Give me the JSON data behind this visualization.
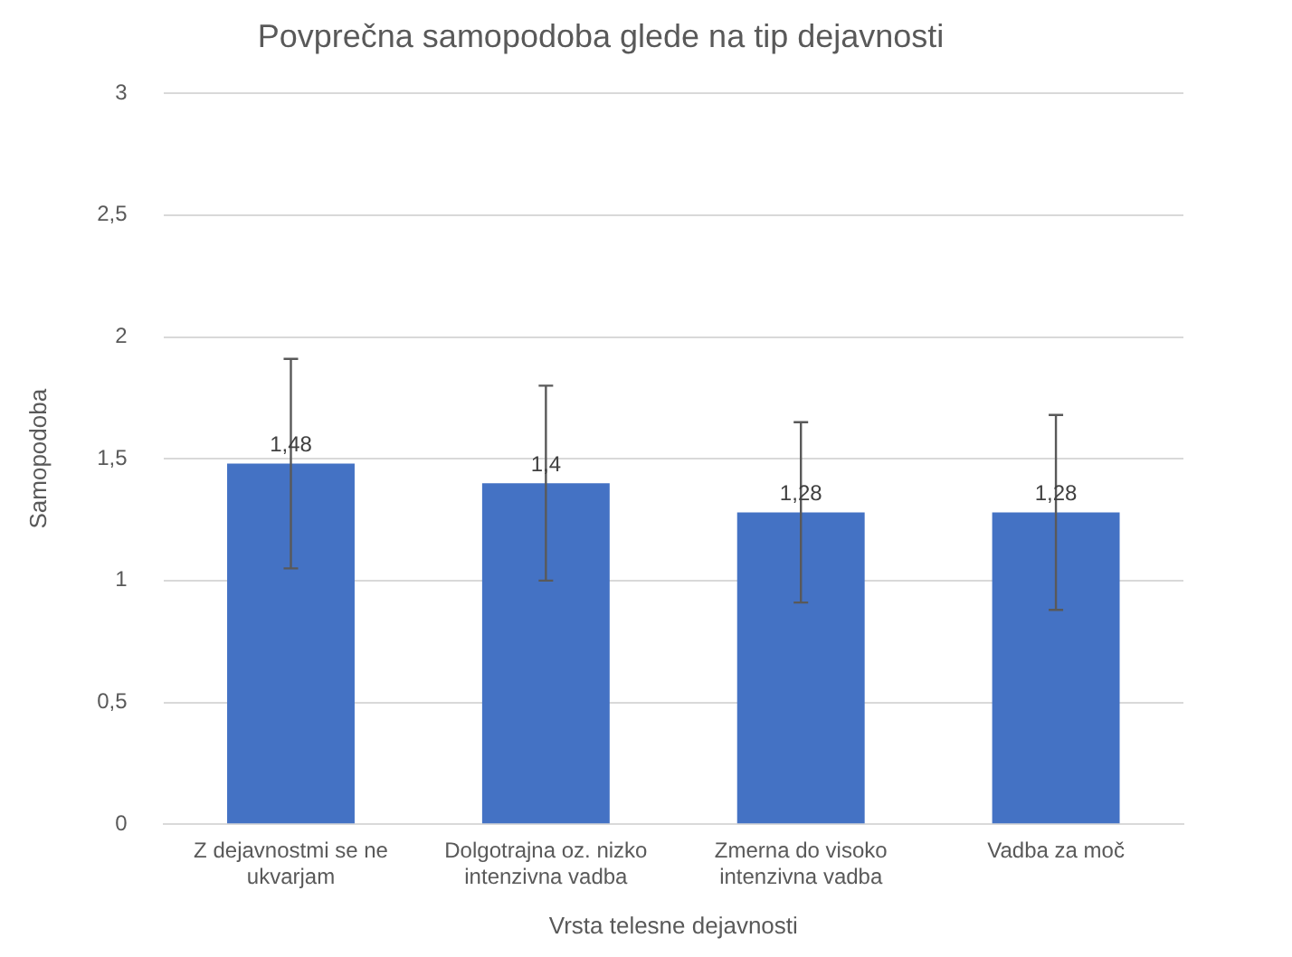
{
  "chart_data": {
    "type": "bar",
    "title": "Povprečna samopodoba glede na tip dejavnosti",
    "xlabel": "Vrsta telesne dejavnosti",
    "ylabel": "Samopodoba",
    "categories": [
      "Z dejavnostmi se ne ukvarjam",
      "Dolgotrajna oz. nizko intenzivna vadba",
      "Zmerna do visoko intenzivna vadba",
      "Vadba za moč"
    ],
    "values": [
      1.48,
      1.4,
      1.28,
      1.28
    ],
    "color": "#4472c4",
    "errors": [
      0.43,
      0.4,
      0.37,
      0.4
    ],
    "value_labels": [
      "1,48",
      "1,4",
      "1,28",
      "1,28"
    ],
    "ylim": [
      0,
      3
    ],
    "yticks": [
      0,
      {
        "value": 0.5,
        "label": "0,5"
      },
      1,
      {
        "value": 1.5,
        "label": "1,5"
      },
      2,
      {
        "value": 2.5,
        "label": "2,5"
      },
      3
    ],
    "grid": "y",
    "legend": false
  }
}
